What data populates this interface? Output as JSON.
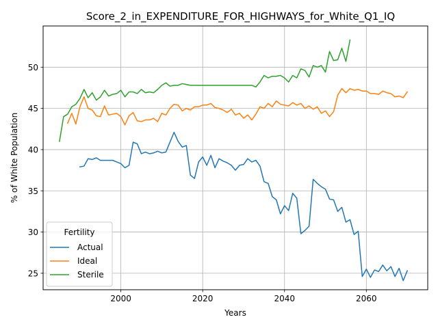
{
  "chart_data": {
    "type": "line",
    "title": "Score_2_in_EXPENDITURE_FOR_HIGHWAYS_for_White_Q1_IQ",
    "xlabel": "Years",
    "ylabel": "% of White Population",
    "xlim": [
      1981,
      2075
    ],
    "ylim": [
      23,
      55
    ],
    "xticks": [
      2000,
      2020,
      2040,
      2060
    ],
    "yticks": [
      25,
      30,
      35,
      40,
      45,
      50
    ],
    "grid": true,
    "legend": {
      "title": "Fertility",
      "position": "lower-left"
    },
    "series": [
      {
        "name": "Actual",
        "color": "#1f77b4",
        "x": [
          1990,
          1991,
          1992,
          1993,
          1994,
          1995,
          1996,
          1997,
          1998,
          1999,
          2000,
          2001,
          2002,
          2003,
          2004,
          2005,
          2006,
          2007,
          2008,
          2009,
          2010,
          2011,
          2012,
          2013,
          2014,
          2015,
          2016,
          2017,
          2018,
          2019,
          2020,
          2021,
          2022,
          2023,
          2024,
          2025,
          2026,
          2027,
          2028,
          2029,
          2030,
          2031,
          2032,
          2033,
          2034,
          2035,
          2036,
          2037,
          2038,
          2039,
          2040,
          2041,
          2042,
          2043,
          2044,
          2045,
          2046,
          2047,
          2048,
          2049,
          2050,
          2051,
          2052,
          2053,
          2054,
          2055,
          2056,
          2057,
          2058,
          2059,
          2060,
          2061,
          2062,
          2063,
          2064,
          2065,
          2066,
          2067,
          2068,
          2069,
          2070
        ],
        "values": [
          37.9,
          38.0,
          38.9,
          38.8,
          39.0,
          38.7,
          38.7,
          38.7,
          38.7,
          38.5,
          38.3,
          37.8,
          38.1,
          40.9,
          40.7,
          39.5,
          39.7,
          39.5,
          39.6,
          39.8,
          39.6,
          39.7,
          40.9,
          42.1,
          41.0,
          40.3,
          40.5,
          36.9,
          36.5,
          38.5,
          39.1,
          38.1,
          39.3,
          37.8,
          38.9,
          38.6,
          38.4,
          38.1,
          37.5,
          38.1,
          38.2,
          38.9,
          38.5,
          38.7,
          38.0,
          36.1,
          35.9,
          34.3,
          33.9,
          32.2,
          33.2,
          32.6,
          34.7,
          34.1,
          29.8,
          30.2,
          30.7,
          36.4,
          35.9,
          35.5,
          35.2,
          34.0,
          33.9,
          32.5,
          33.0,
          31.2,
          31.5,
          29.7,
          30.1,
          24.6,
          25.5,
          24.5,
          25.4,
          25.2,
          26.0,
          25.3,
          25.8,
          24.6,
          25.6,
          24.1,
          25.3
        ]
      },
      {
        "name": "Ideal",
        "color": "#ff7f0e",
        "x": [
          1987,
          1988,
          1989,
          1990,
          1991,
          1992,
          1993,
          1994,
          1995,
          1996,
          1997,
          1998,
          1999,
          2000,
          2001,
          2002,
          2003,
          2004,
          2005,
          2006,
          2007,
          2008,
          2009,
          2010,
          2011,
          2012,
          2013,
          2014,
          2015,
          2016,
          2017,
          2018,
          2019,
          2020,
          2021,
          2022,
          2023,
          2024,
          2025,
          2026,
          2027,
          2028,
          2029,
          2030,
          2031,
          2032,
          2033,
          2034,
          2035,
          2036,
          2037,
          2038,
          2039,
          2040,
          2041,
          2042,
          2043,
          2044,
          2045,
          2046,
          2047,
          2048,
          2049,
          2050,
          2051,
          2052,
          2053,
          2054,
          2055,
          2056,
          2057,
          2058,
          2059,
          2060,
          2061,
          2062,
          2063,
          2064,
          2065,
          2066,
          2067,
          2068,
          2069,
          2070
        ],
        "values": [
          43.2,
          44.4,
          43.1,
          45.2,
          46.4,
          45.0,
          44.8,
          44.1,
          44.0,
          45.3,
          44.2,
          44.3,
          44.4,
          44.0,
          43.0,
          44.1,
          44.5,
          43.5,
          43.4,
          43.6,
          43.6,
          43.8,
          43.4,
          44.4,
          44.2,
          45.0,
          45.5,
          45.4,
          44.7,
          45.0,
          44.8,
          45.2,
          45.2,
          45.4,
          45.4,
          45.6,
          45.1,
          45.0,
          44.8,
          44.5,
          44.9,
          44.2,
          44.4,
          43.8,
          44.2,
          43.6,
          44.3,
          45.2,
          45.0,
          45.6,
          45.2,
          45.9,
          45.5,
          45.4,
          45.3,
          45.7,
          45.4,
          45.6,
          45.0,
          45.3,
          44.9,
          45.2,
          44.4,
          44.7,
          44.0,
          44.6,
          46.6,
          47.4,
          46.9,
          47.4,
          47.2,
          47.3,
          47.1,
          47.1,
          46.8,
          46.8,
          46.7,
          47.1,
          46.9,
          46.8,
          46.4,
          46.5,
          46.3,
          47.0
        ]
      },
      {
        "name": "Sterile",
        "color": "#2ca02c",
        "x": [
          1985,
          1986,
          1987,
          1988,
          1989,
          1990,
          1991,
          1992,
          1993,
          1994,
          1995,
          1996,
          1997,
          1998,
          1999,
          2000,
          2001,
          2002,
          2003,
          2004,
          2005,
          2006,
          2007,
          2008,
          2009,
          2010,
          2011,
          2012,
          2013,
          2014,
          2015,
          2016,
          2017,
          2018,
          2019,
          2020,
          2021,
          2022,
          2023,
          2024,
          2025,
          2026,
          2027,
          2028,
          2029,
          2030,
          2031,
          2032,
          2033,
          2034,
          2035,
          2036,
          2037,
          2038,
          2039,
          2040,
          2041,
          2042,
          2043,
          2044,
          2045,
          2046,
          2047,
          2048,
          2049,
          2050,
          2051,
          2052,
          2053,
          2054,
          2055,
          2056
        ],
        "values": [
          41.0,
          44.0,
          44.3,
          45.2,
          45.5,
          46.2,
          47.3,
          46.3,
          46.9,
          46.0,
          46.4,
          47.2,
          46.5,
          46.7,
          46.8,
          47.2,
          46.4,
          47.0,
          47.0,
          46.8,
          47.3,
          46.9,
          47.0,
          46.9,
          47.3,
          47.8,
          48.1,
          47.7,
          47.8,
          47.8,
          48.0,
          47.9,
          47.8,
          47.8,
          47.8,
          47.8,
          47.8,
          47.8,
          47.8,
          47.8,
          47.8,
          47.8,
          47.8,
          47.8,
          47.8,
          47.8,
          47.8,
          47.8,
          47.6,
          48.2,
          49.0,
          48.7,
          48.9,
          48.9,
          49.0,
          48.7,
          48.2,
          49.0,
          48.7,
          49.8,
          49.6,
          48.8,
          50.2,
          50.0,
          50.2,
          49.4,
          51.9,
          50.8,
          50.9,
          52.3,
          50.7,
          53.3
        ]
      }
    ]
  }
}
